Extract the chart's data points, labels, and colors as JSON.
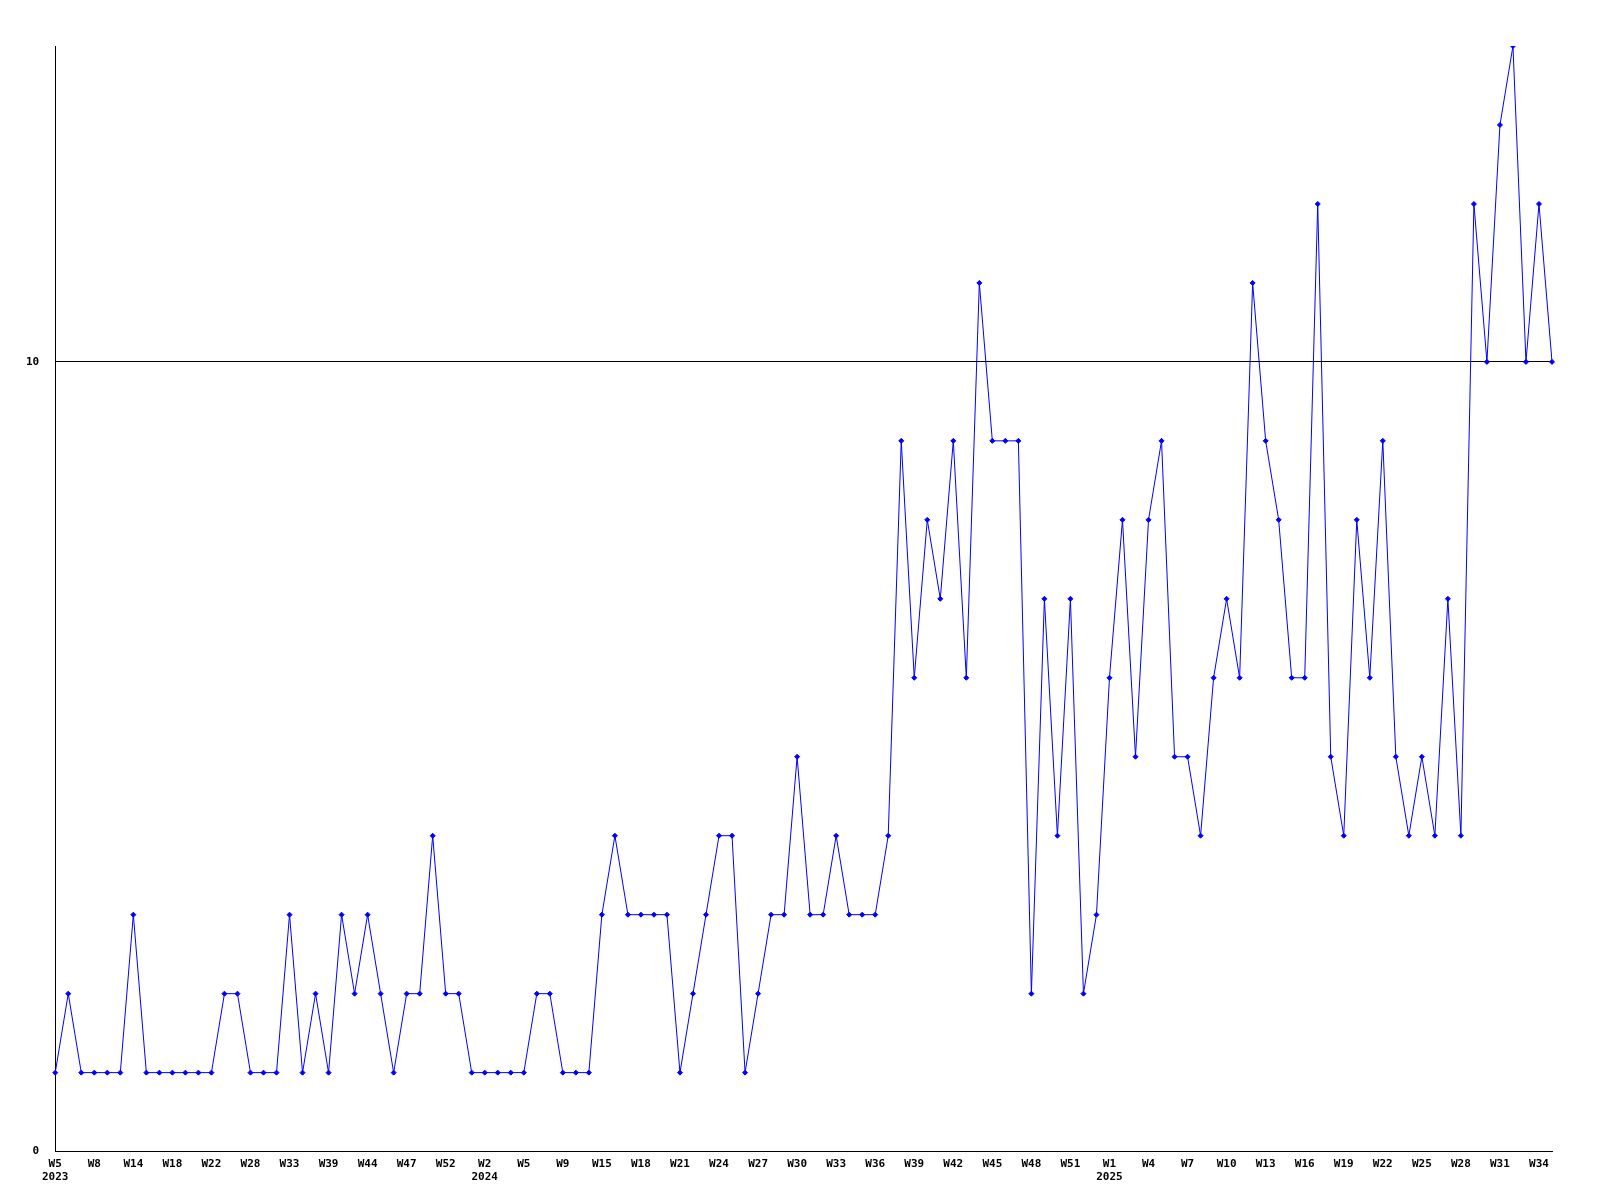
{
  "chart_data": {
    "type": "line",
    "categories": [
      "W5\n2023",
      null,
      null,
      "W8",
      null,
      null,
      "W14",
      null,
      null,
      "W18",
      null,
      null,
      "W22",
      null,
      null,
      "W28",
      null,
      null,
      "W33",
      null,
      null,
      "W39",
      null,
      null,
      "W44",
      null,
      null,
      "W47",
      null,
      null,
      "W52",
      null,
      null,
      "W2\n2024",
      null,
      null,
      "W5",
      null,
      null,
      "W9",
      null,
      null,
      "W15",
      null,
      null,
      "W18",
      null,
      null,
      "W21",
      null,
      null,
      "W24",
      null,
      null,
      "W27",
      null,
      null,
      "W30",
      null,
      null,
      "W33",
      null,
      null,
      "W36",
      null,
      null,
      "W39",
      null,
      null,
      "W42",
      null,
      null,
      "W45",
      null,
      null,
      "W48",
      null,
      null,
      "W51",
      null,
      null,
      "W1\n2025",
      null,
      null,
      "W4",
      null,
      null,
      "W7",
      null,
      null,
      "W10",
      null,
      null,
      "W13",
      null,
      null,
      "W16",
      null,
      null,
      "W19",
      null,
      null,
      "W22",
      null,
      null,
      "W25",
      null,
      null,
      "W28",
      null,
      null,
      "W31",
      null,
      null,
      "W34",
      null
    ],
    "series": [
      {
        "color": "#0000ff",
        "values": [
          1,
          2,
          1,
          1,
          1,
          1,
          3,
          1,
          1,
          1,
          1,
          1,
          1,
          2,
          2,
          1,
          1,
          1,
          3,
          1,
          2,
          1,
          3,
          2,
          3,
          2,
          1,
          2,
          2,
          4,
          2,
          2,
          1,
          1,
          1,
          1,
          1,
          2,
          2,
          1,
          1,
          1,
          3,
          4,
          3,
          3,
          3,
          3,
          1,
          2,
          3,
          4,
          4,
          1,
          2,
          3,
          3,
          5,
          3,
          3,
          4,
          3,
          3,
          3,
          4,
          9,
          6,
          8,
          7,
          9,
          6,
          11,
          9,
          9,
          9,
          2,
          7,
          4,
          7,
          2,
          3,
          6,
          8,
          5,
          8,
          9,
          5,
          5,
          4,
          6,
          7,
          6,
          11,
          9,
          8,
          6,
          6,
          12,
          5,
          4,
          8,
          6,
          9,
          5,
          4,
          5,
          4,
          7,
          4,
          12,
          10,
          13,
          14,
          10,
          12,
          10
        ]
      }
    ],
    "ylim": [
      0,
      14
    ],
    "yticks": [
      0,
      10
    ],
    "grid": "y",
    "legend": false,
    "marker": "diamond",
    "line_style": "solid"
  }
}
